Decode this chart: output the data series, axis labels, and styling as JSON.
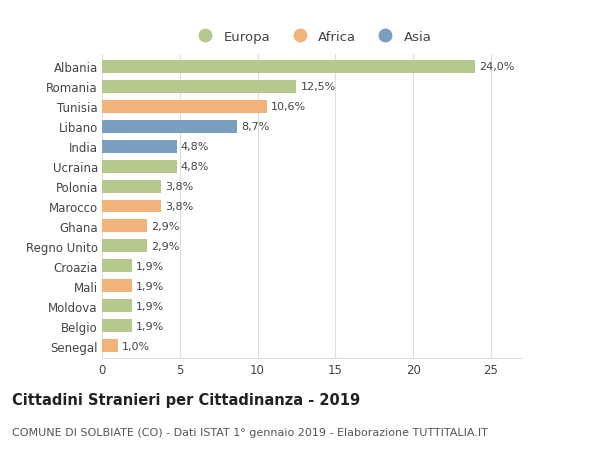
{
  "countries": [
    "Albania",
    "Romania",
    "Tunisia",
    "Libano",
    "India",
    "Ucraina",
    "Polonia",
    "Marocco",
    "Ghana",
    "Regno Unito",
    "Croazia",
    "Mali",
    "Moldova",
    "Belgio",
    "Senegal"
  ],
  "values": [
    24.0,
    12.5,
    10.6,
    8.7,
    4.8,
    4.8,
    3.8,
    3.8,
    2.9,
    2.9,
    1.9,
    1.9,
    1.9,
    1.9,
    1.0
  ],
  "labels": [
    "24,0%",
    "12,5%",
    "10,6%",
    "8,7%",
    "4,8%",
    "4,8%",
    "3,8%",
    "3,8%",
    "2,9%",
    "2,9%",
    "1,9%",
    "1,9%",
    "1,9%",
    "1,9%",
    "1,0%"
  ],
  "continents": [
    "Europa",
    "Europa",
    "Africa",
    "Asia",
    "Asia",
    "Europa",
    "Europa",
    "Africa",
    "Africa",
    "Europa",
    "Europa",
    "Africa",
    "Europa",
    "Europa",
    "Africa"
  ],
  "continent_colors": {
    "Europa": "#b5c98e",
    "Africa": "#f0b47a",
    "Asia": "#7a9fc0"
  },
  "legend_order": [
    "Europa",
    "Africa",
    "Asia"
  ],
  "title": "Cittadini Stranieri per Cittadinanza - 2019",
  "subtitle": "COMUNE DI SOLBIATE (CO) - Dati ISTAT 1° gennaio 2019 - Elaborazione TUTTITALIA.IT",
  "xlim": [
    0,
    27
  ],
  "xticks": [
    0,
    5,
    10,
    15,
    20,
    25
  ],
  "background_color": "#ffffff",
  "grid_color": "#dddddd",
  "bar_height": 0.65,
  "title_fontsize": 10.5,
  "subtitle_fontsize": 8,
  "label_fontsize": 8,
  "tick_fontsize": 8.5,
  "legend_fontsize": 9.5,
  "text_color": "#444444"
}
